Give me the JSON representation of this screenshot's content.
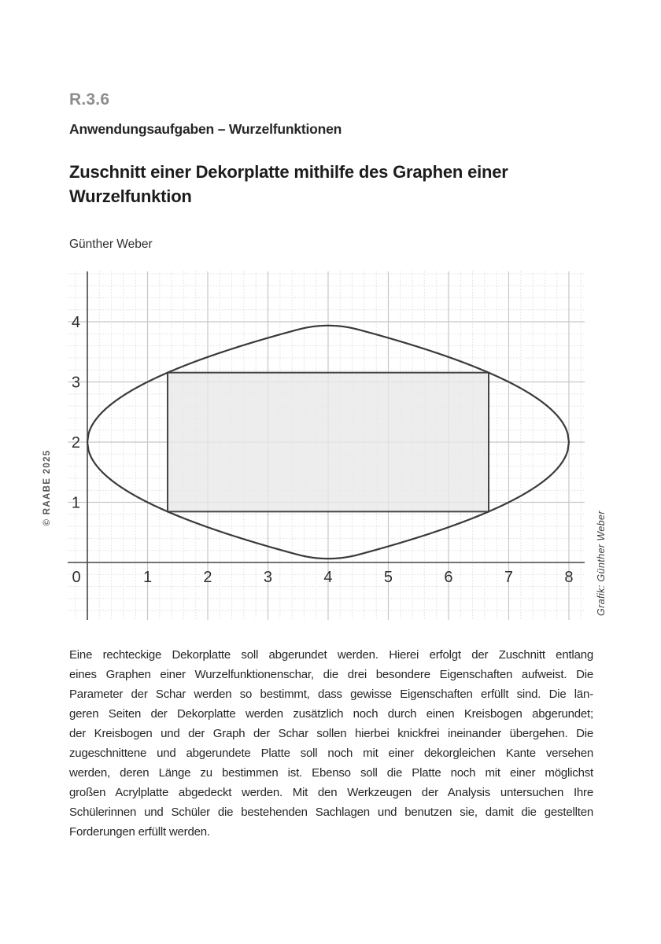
{
  "page": {
    "code": "R.3.6",
    "category": "Anwendungsaufgaben – Wurzelfunktionen",
    "title": "Zuschnitt einer Dekorplatte mithilfe des Graphen einer Wurzelfunktion",
    "author": "Günther Weber",
    "copyright_vertical": "© RAABE 2025",
    "credit_vertical": "Grafik: Günther Weber"
  },
  "body": {
    "lines": [
      "Eine rechteckige Dekorplatte soll abgerundet werden. Hierei erfolgt der Zuschnitt entlang",
      "eines Graphen einer Wurzelfunktionenschar, die drei besondere Eigenschaften aufweist. Die",
      "Parameter der Schar werden so bestimmt, dass gewisse Eigenschaften erfüllt sind. Die län-",
      "geren Seiten der Dekorplatte werden zusätzlich noch durch einen Kreisbogen abgerundet;",
      "der Kreisbogen und der Graph der Schar sollen hierbei knickfrei ineinander übergehen. Die",
      "zugeschnittene und abgerundete Platte soll noch mit einer dekorgleichen Kante versehen",
      "werden, deren Länge zu bestimmen ist. Ebenso soll die Platte noch mit einer möglichst",
      "großen Acrylplatte abgedeckt werden. Mit den Werkzeugen der Analysis untersuchen Ihre",
      "Schülerinnen und Schüler die bestehenden Sachlagen und benutzen sie, damit die gestellten",
      "Forderungen erfüllt werden."
    ]
  },
  "chart_data": {
    "type": "line",
    "title": "",
    "xlabel": "",
    "ylabel": "",
    "grid": true,
    "x_ticks": [
      0,
      1,
      2,
      3,
      4,
      5,
      6,
      7,
      8
    ],
    "y_ticks": [
      1,
      2,
      3,
      4
    ],
    "x_view_range": [
      -0.327,
      8.262
    ],
    "y_view_range": [
      -0.955,
      4.837
    ],
    "minor_grid_step": 0.2,
    "major_grid_step": 1,
    "curve": {
      "description": "Lens-shaped cutting outline, symmetric about y=2 and x=4: y = 2 ± √x for 0 ≤ x ≤ 3.5, knick-free circular arc for 3.5 ≤ x ≤ 4.5, y = 2 ± √(8−x) for 4.5 ≤ x ≤ 8",
      "sqrt_coefficient": 1,
      "baseline_y": 2,
      "domain": [
        0,
        8
      ],
      "arc_center": [
        4,
        2
      ],
      "arc_radius_squared": 3.75,
      "arc_junctions": [
        3.5,
        4.5
      ],
      "peak": [
        4,
        3.94
      ],
      "left_vertex": [
        0,
        2
      ],
      "right_vertex": [
        8,
        2
      ]
    },
    "rectangle": {
      "x0": 1.333,
      "x1": 6.667,
      "y0": 0.845,
      "y1": 3.155
    },
    "colors": {
      "curve": "#3a3a3a",
      "axis": "#4a4a4a",
      "major_grid": "#c7c7c7",
      "minor_grid": "#dedede",
      "rect_fill": "#e8e8e8",
      "rect_stroke": "#454545",
      "tick_label": "#2f2f2f"
    }
  }
}
